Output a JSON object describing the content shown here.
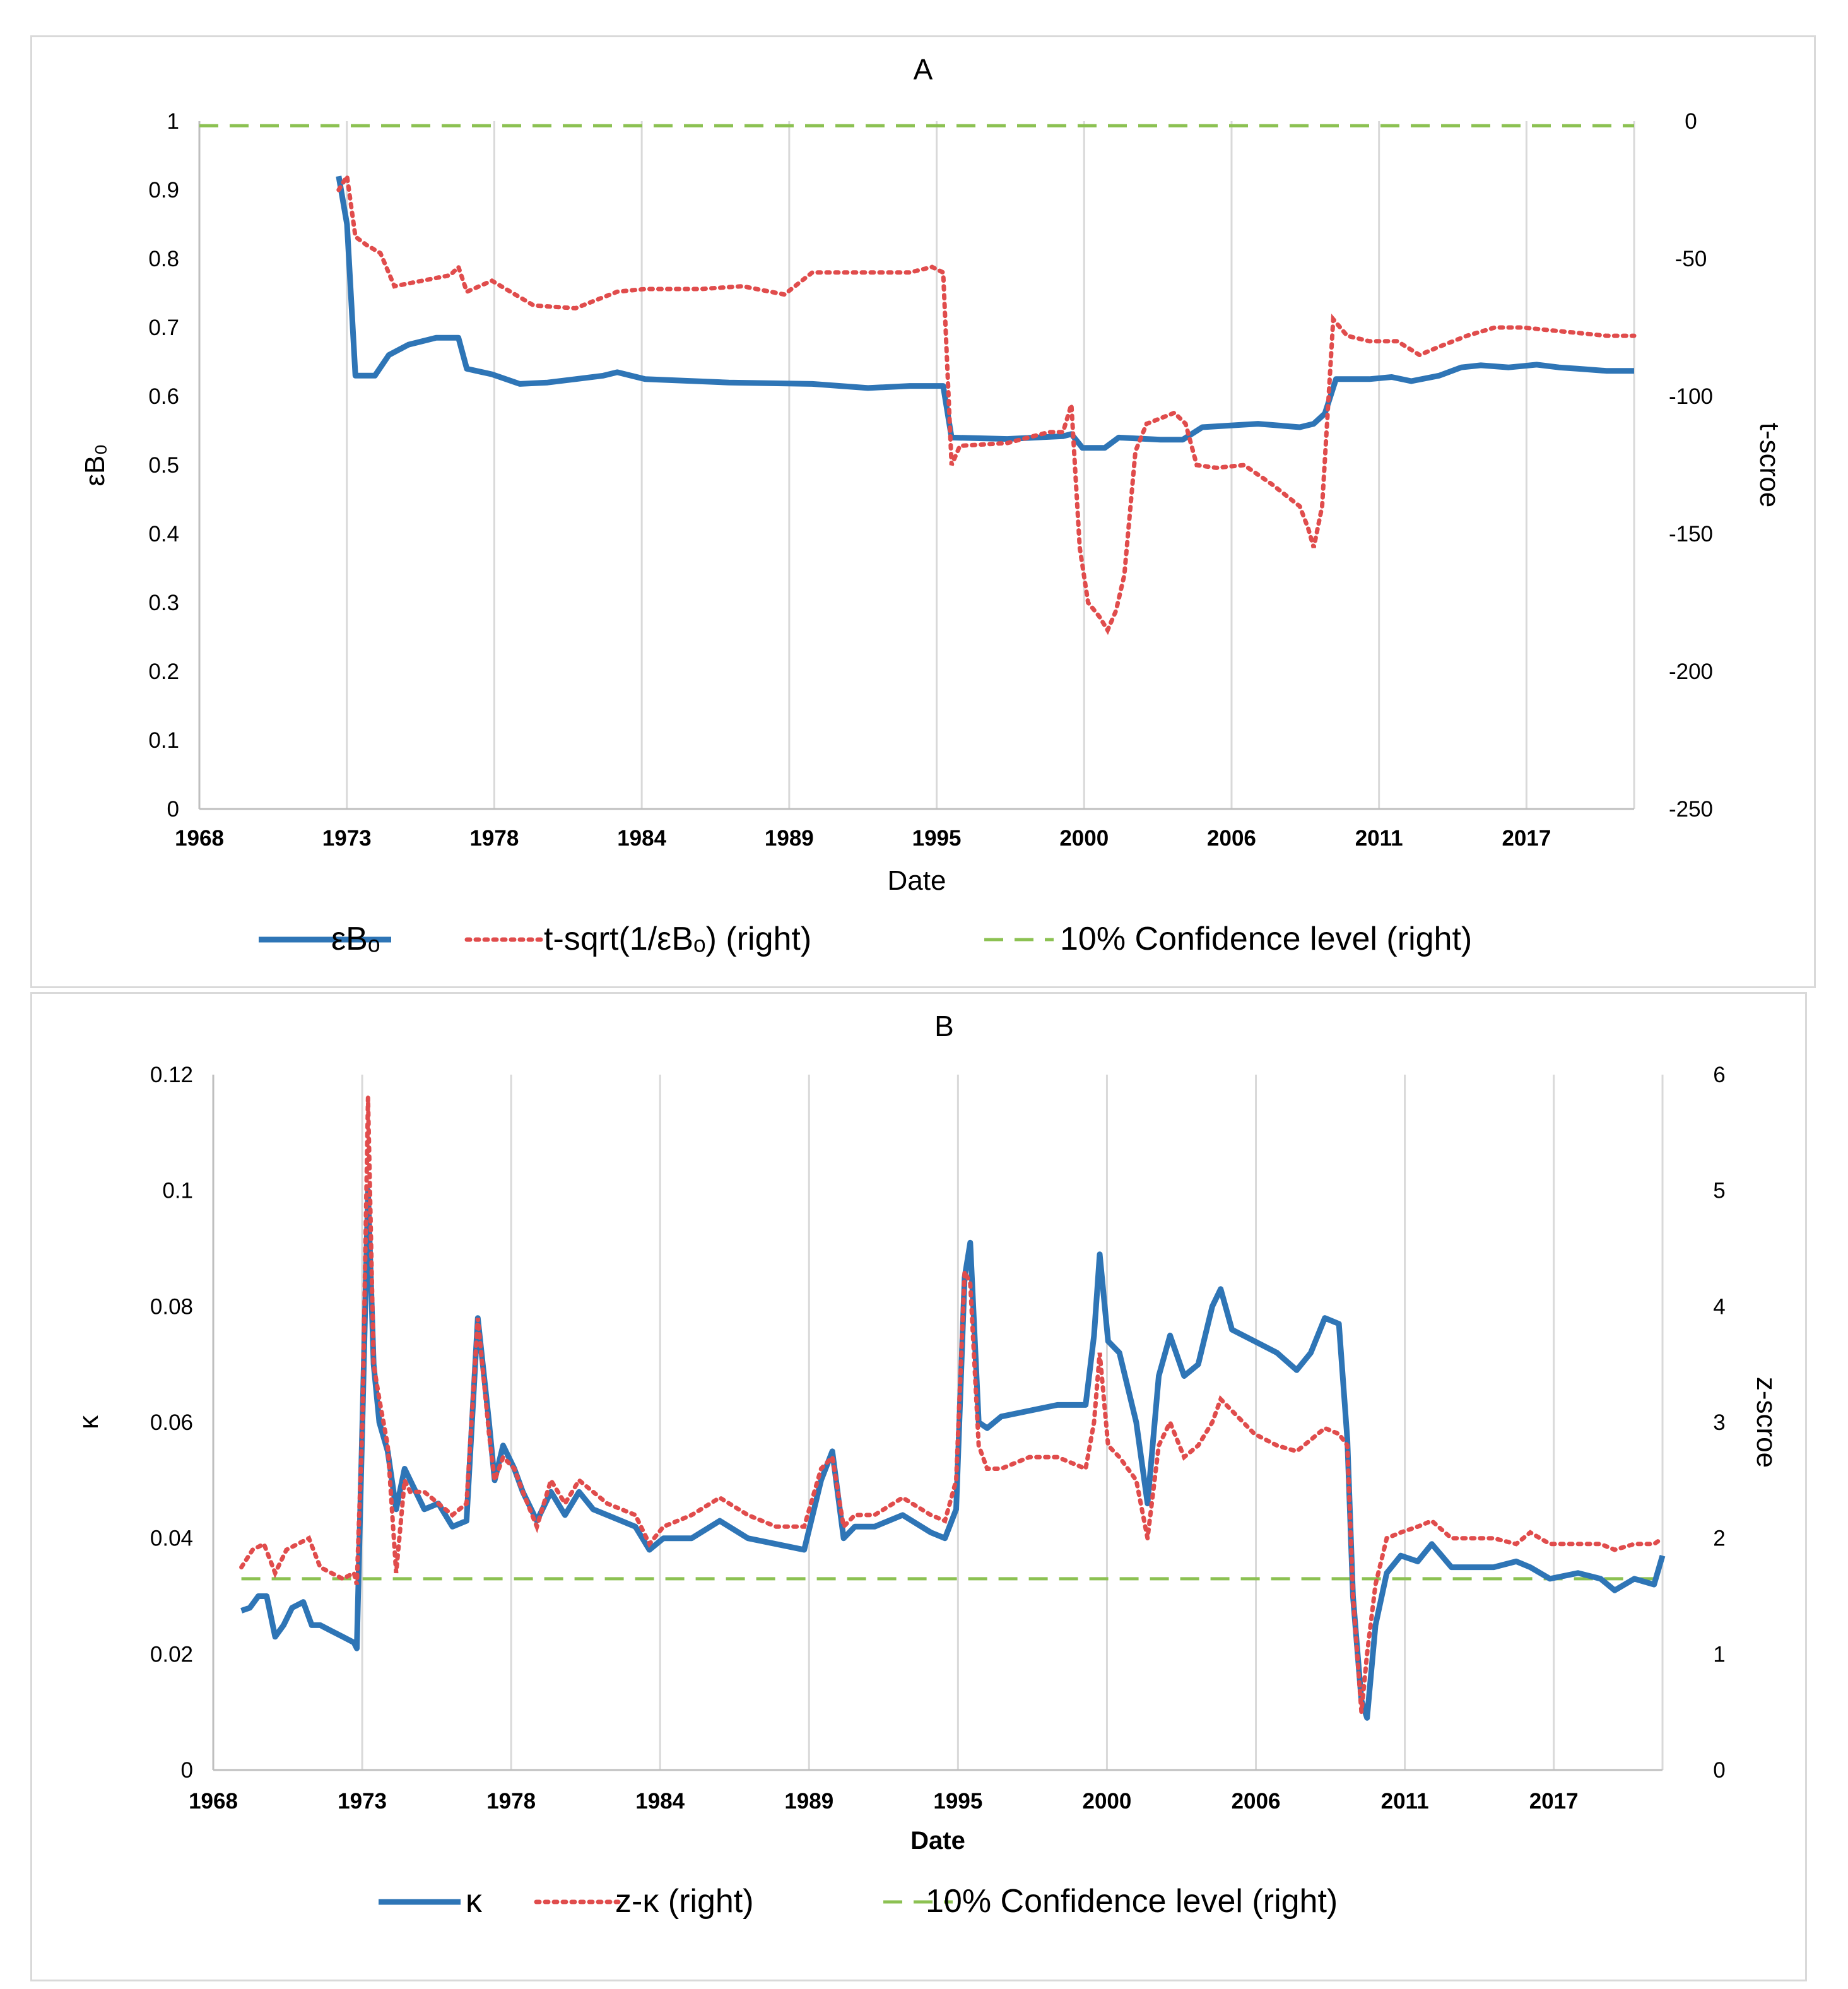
{
  "chart_data": [
    {
      "panel": "A",
      "type": "line",
      "title": "A",
      "xlabel": "Date",
      "ylabel_left": "εB₀",
      "ylabel_right": "t-scroe",
      "x_tick_labels": [
        "1968",
        "1973",
        "1978",
        "1984",
        "1989",
        "1995",
        "2000",
        "2006",
        "2011",
        "2017"
      ],
      "xlim": [
        1968.0,
        2019.5
      ],
      "ylim_left": [
        0,
        1
      ],
      "ylim_right": [
        -250,
        0
      ],
      "y_ticks_left": [
        "0",
        "0.1",
        "0.2",
        "0.3",
        "0.4",
        "0.5",
        "0.6",
        "0.7",
        "0.8",
        "0.9",
        "1"
      ],
      "y_ticks_right": [
        "-250",
        "-200",
        "-150",
        "-100",
        "-50",
        "0"
      ],
      "grid": "vertical",
      "legend_position": "bottom",
      "series": [
        {
          "name": "εBₒ",
          "axis": "left",
          "color": "#2e75b6",
          "style": "solid",
          "x": [
            1973.0,
            1973.3,
            1973.6,
            1974.3,
            1974.8,
            1975.5,
            1976.5,
            1977.3,
            1977.6,
            1978.5,
            1979.5,
            1980.5,
            1981.5,
            1982.5,
            1983.0,
            1984.0,
            1987.0,
            1990.0,
            1992.0,
            1993.5,
            1994.3,
            1994.7,
            1995.0,
            1997.0,
            1999.0,
            1999.3,
            1999.7,
            2000.5,
            2001.0,
            2002.5,
            2003.3,
            2004.0,
            2006.0,
            2007.5,
            2008.0,
            2008.4,
            2008.8,
            2010.0,
            2010.8,
            2011.5,
            2012.5,
            2013.3,
            2014.0,
            2015.0,
            2016.0,
            2016.8,
            2017.5,
            2018.5,
            2019.5
          ],
          "y": [
            0.92,
            0.85,
            0.63,
            0.63,
            0.66,
            0.675,
            0.685,
            0.685,
            0.64,
            0.632,
            0.618,
            0.62,
            0.625,
            0.63,
            0.635,
            0.625,
            0.62,
            0.618,
            0.612,
            0.615,
            0.615,
            0.615,
            0.54,
            0.538,
            0.542,
            0.545,
            0.525,
            0.525,
            0.54,
            0.537,
            0.537,
            0.555,
            0.56,
            0.555,
            0.56,
            0.575,
            0.625,
            0.625,
            0.628,
            0.622,
            0.63,
            0.642,
            0.645,
            0.642,
            0.646,
            0.642,
            0.64,
            0.637,
            0.637
          ]
        },
        {
          "name": "t-sqrt(1/εBₒ) (right)",
          "axis": "right",
          "color": "#e04c4c",
          "style": "dotted",
          "x": [
            1973.0,
            1973.3,
            1973.6,
            1974.0,
            1974.5,
            1975.0,
            1976.0,
            1977.0,
            1977.3,
            1977.6,
            1978.5,
            1980.0,
            1981.5,
            1983.0,
            1984.0,
            1986.0,
            1987.5,
            1989.0,
            1990.0,
            1992.0,
            1993.5,
            1994.3,
            1994.7,
            1995.0,
            1995.3,
            1997.0,
            1998.5,
            1999.0,
            1999.3,
            1999.6,
            1999.9,
            2000.3,
            2000.6,
            2000.9,
            2001.2,
            2001.6,
            2002.0,
            2002.5,
            2003.0,
            2003.4,
            2003.8,
            2004.5,
            2005.5,
            2006.5,
            2007.5,
            2007.8,
            2008.0,
            2008.3,
            2008.7,
            2009.2,
            2010.0,
            2011.0,
            2011.8,
            2012.5,
            2013.5,
            2014.5,
            2015.5,
            2016.5,
            2017.5,
            2018.5,
            2019.5
          ],
          "y": [
            -25,
            -20,
            -42,
            -45,
            -48,
            -60,
            -58,
            -56,
            -53,
            -62,
            -58,
            -67,
            -68,
            -62,
            -61,
            -61,
            -60,
            -63,
            -55,
            -55,
            -55,
            -53,
            -55,
            -125,
            -118,
            -117,
            -113,
            -113,
            -103,
            -155,
            -175,
            -180,
            -185,
            -178,
            -165,
            -120,
            -110,
            -108,
            -106,
            -110,
            -125,
            -126,
            -125,
            -132,
            -140,
            -148,
            -155,
            -140,
            -72,
            -78,
            -80,
            -80,
            -85,
            -82,
            -78,
            -75,
            -75,
            -76,
            -77,
            -78,
            -78
          ]
        },
        {
          "name": "10% Confidence level (right)",
          "axis": "right",
          "color": "#8cc152",
          "style": "dashed",
          "x": [
            1968.0,
            2019.5
          ],
          "y": [
            -1.64,
            -1.64
          ]
        }
      ]
    },
    {
      "panel": "B",
      "type": "line",
      "title": "B",
      "xlabel": "Date",
      "ylabel_left": "κ",
      "ylabel_right": "z-scroe",
      "x_tick_labels": [
        "1968",
        "1973",
        "1978",
        "1984",
        "1989",
        "1995",
        "2000",
        "2006",
        "2011",
        "2017"
      ],
      "xlim": [
        1968.0,
        2019.5
      ],
      "ylim_left": [
        0,
        0.12
      ],
      "ylim_right": [
        0,
        6
      ],
      "y_ticks_left": [
        "0",
        "0.02",
        "0.04",
        "0.06",
        "0.08",
        "0.1",
        "0.12"
      ],
      "y_ticks_right": [
        "0",
        "1",
        "2",
        "3",
        "4",
        "5",
        "6"
      ],
      "grid": "vertical",
      "legend_position": "bottom",
      "series": [
        {
          "name": "κ",
          "axis": "left",
          "color": "#2e75b6",
          "style": "solid",
          "x": [
            1969.0,
            1969.3,
            1969.6,
            1969.9,
            1970.2,
            1970.5,
            1970.8,
            1971.2,
            1971.5,
            1971.8,
            1972.2,
            1972.6,
            1973.0,
            1973.1,
            1973.3,
            1973.5,
            1973.7,
            1973.9,
            1974.2,
            1974.5,
            1974.8,
            1975.0,
            1975.5,
            1976.0,
            1976.5,
            1977.0,
            1977.4,
            1977.8,
            1978.0,
            1978.3,
            1978.7,
            1979.0,
            1979.5,
            1980.0,
            1980.5,
            1981.0,
            1981.5,
            1982.0,
            1983.0,
            1983.5,
            1984.0,
            1985.0,
            1986.0,
            1987.0,
            1988.0,
            1989.0,
            1989.6,
            1990.0,
            1990.4,
            1990.8,
            1991.5,
            1992.5,
            1993.5,
            1994.0,
            1994.4,
            1994.7,
            1994.9,
            1995.2,
            1995.5,
            1996.0,
            1997.0,
            1998.0,
            1999.0,
            1999.3,
            1999.5,
            1999.8,
            2000.2,
            2000.8,
            2001.2,
            2001.6,
            2002.0,
            2002.5,
            2003.0,
            2003.5,
            2003.8,
            2004.2,
            2005.0,
            2005.8,
            2006.5,
            2007.0,
            2007.5,
            2008.0,
            2008.3,
            2008.5,
            2008.8,
            2009.0,
            2009.3,
            2009.7,
            2010.2,
            2010.8,
            2011.3,
            2012.0,
            2012.8,
            2013.5,
            2014.3,
            2014.8,
            2015.5,
            2016.5,
            2017.3,
            2017.8,
            2018.5,
            2019.2,
            2019.5
          ],
          "y": [
            0.0275,
            0.028,
            0.03,
            0.03,
            0.023,
            0.025,
            0.028,
            0.029,
            0.025,
            0.025,
            0.024,
            0.023,
            0.022,
            0.021,
            0.06,
            0.1,
            0.07,
            0.06,
            0.055,
            0.045,
            0.052,
            0.05,
            0.045,
            0.046,
            0.042,
            0.043,
            0.078,
            0.06,
            0.05,
            0.056,
            0.052,
            0.048,
            0.043,
            0.048,
            0.044,
            0.048,
            0.045,
            0.044,
            0.042,
            0.038,
            0.04,
            0.04,
            0.043,
            0.04,
            0.039,
            0.038,
            0.05,
            0.055,
            0.04,
            0.042,
            0.042,
            0.044,
            0.041,
            0.04,
            0.045,
            0.085,
            0.091,
            0.06,
            0.059,
            0.061,
            0.062,
            0.063,
            0.063,
            0.075,
            0.089,
            0.074,
            0.072,
            0.06,
            0.046,
            0.068,
            0.075,
            0.068,
            0.07,
            0.08,
            0.083,
            0.076,
            0.074,
            0.072,
            0.069,
            0.072,
            0.078,
            0.077,
            0.057,
            0.03,
            0.012,
            0.009,
            0.025,
            0.034,
            0.037,
            0.036,
            0.039,
            0.035,
            0.035,
            0.035,
            0.036,
            0.035,
            0.033,
            0.034,
            0.033,
            0.031,
            0.033,
            0.032,
            0.037
          ]
        },
        {
          "name": "z-κ (right)",
          "axis": "right",
          "color": "#e04c4c",
          "style": "dotted",
          "x": [
            1969.0,
            1969.4,
            1969.8,
            1970.2,
            1970.6,
            1971.0,
            1971.4,
            1971.8,
            1972.2,
            1972.6,
            1973.0,
            1973.1,
            1973.3,
            1973.5,
            1973.7,
            1973.9,
            1974.2,
            1974.5,
            1974.8,
            1975.0,
            1975.5,
            1976.0,
            1976.5,
            1977.0,
            1977.4,
            1977.8,
            1978.0,
            1978.3,
            1978.7,
            1979.0,
            1979.5,
            1980.0,
            1980.5,
            1981.0,
            1981.5,
            1982.0,
            1983.0,
            1983.5,
            1984.0,
            1985.0,
            1986.0,
            1987.0,
            1988.0,
            1989.0,
            1989.6,
            1990.0,
            1990.4,
            1990.8,
            1991.5,
            1992.5,
            1993.5,
            1994.0,
            1994.4,
            1994.7,
            1994.9,
            1995.2,
            1995.5,
            1996.0,
            1997.0,
            1998.0,
            1999.0,
            1999.3,
            1999.5,
            1999.8,
            2000.2,
            2000.8,
            2001.2,
            2001.6,
            2002.0,
            2002.5,
            2003.0,
            2003.5,
            2003.8,
            2004.2,
            2005.0,
            2005.8,
            2006.5,
            2007.0,
            2007.5,
            2008.0,
            2008.3,
            2008.5,
            2008.8,
            2009.0,
            2009.3,
            2009.7,
            2010.2,
            2010.8,
            2011.3,
            2012.0,
            2012.8,
            2013.5,
            2014.3,
            2014.8,
            2015.5,
            2016.5,
            2017.3,
            2017.8,
            2018.5,
            2019.2,
            2019.5
          ],
          "y": [
            1.75,
            1.9,
            1.95,
            1.7,
            1.9,
            1.95,
            2.0,
            1.75,
            1.7,
            1.65,
            1.7,
            1.6,
            3.0,
            5.8,
            3.5,
            3.2,
            2.8,
            1.7,
            2.5,
            2.4,
            2.4,
            2.3,
            2.2,
            2.3,
            3.9,
            2.9,
            2.5,
            2.7,
            2.6,
            2.4,
            2.1,
            2.5,
            2.3,
            2.5,
            2.4,
            2.3,
            2.2,
            1.95,
            2.1,
            2.2,
            2.35,
            2.2,
            2.1,
            2.1,
            2.6,
            2.7,
            2.1,
            2.2,
            2.2,
            2.35,
            2.2,
            2.15,
            2.5,
            4.3,
            4.2,
            2.8,
            2.6,
            2.6,
            2.7,
            2.7,
            2.6,
            3.0,
            3.6,
            2.8,
            2.7,
            2.5,
            2.0,
            2.8,
            3.0,
            2.7,
            2.8,
            3.0,
            3.2,
            3.1,
            2.9,
            2.8,
            2.75,
            2.85,
            2.95,
            2.9,
            2.8,
            1.5,
            0.5,
            1.0,
            1.6,
            2.0,
            2.05,
            2.1,
            2.15,
            2.0,
            2.0,
            2.0,
            1.95,
            2.05,
            1.95,
            1.95,
            1.95,
            1.9,
            1.95,
            1.95,
            2.0
          ]
        },
        {
          "name": "10% Confidence level (right)",
          "axis": "right",
          "color": "#8cc152",
          "style": "dashed",
          "x": [
            1969.0,
            2019.5
          ],
          "y": [
            1.65,
            1.65
          ]
        }
      ]
    }
  ]
}
